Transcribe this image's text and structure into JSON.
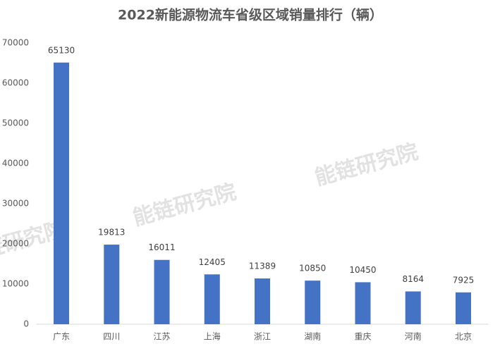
{
  "chart_data": {
    "type": "bar",
    "title": "2022新能源物流车省级区域销量排行（辆）",
    "categories": [
      "广东",
      "四川",
      "江苏",
      "上海",
      "浙江",
      "湖南",
      "重庆",
      "河南",
      "北京"
    ],
    "values": [
      65130,
      19813,
      16011,
      12405,
      11389,
      10850,
      10450,
      8164,
      7925
    ],
    "color": "#4472c4",
    "ylim": [
      0,
      70000
    ],
    "yticks": [
      0,
      10000,
      20000,
      30000,
      40000,
      50000,
      60000,
      70000
    ],
    "grid": false,
    "data_labels": true,
    "watermark": "能链研究院"
  }
}
